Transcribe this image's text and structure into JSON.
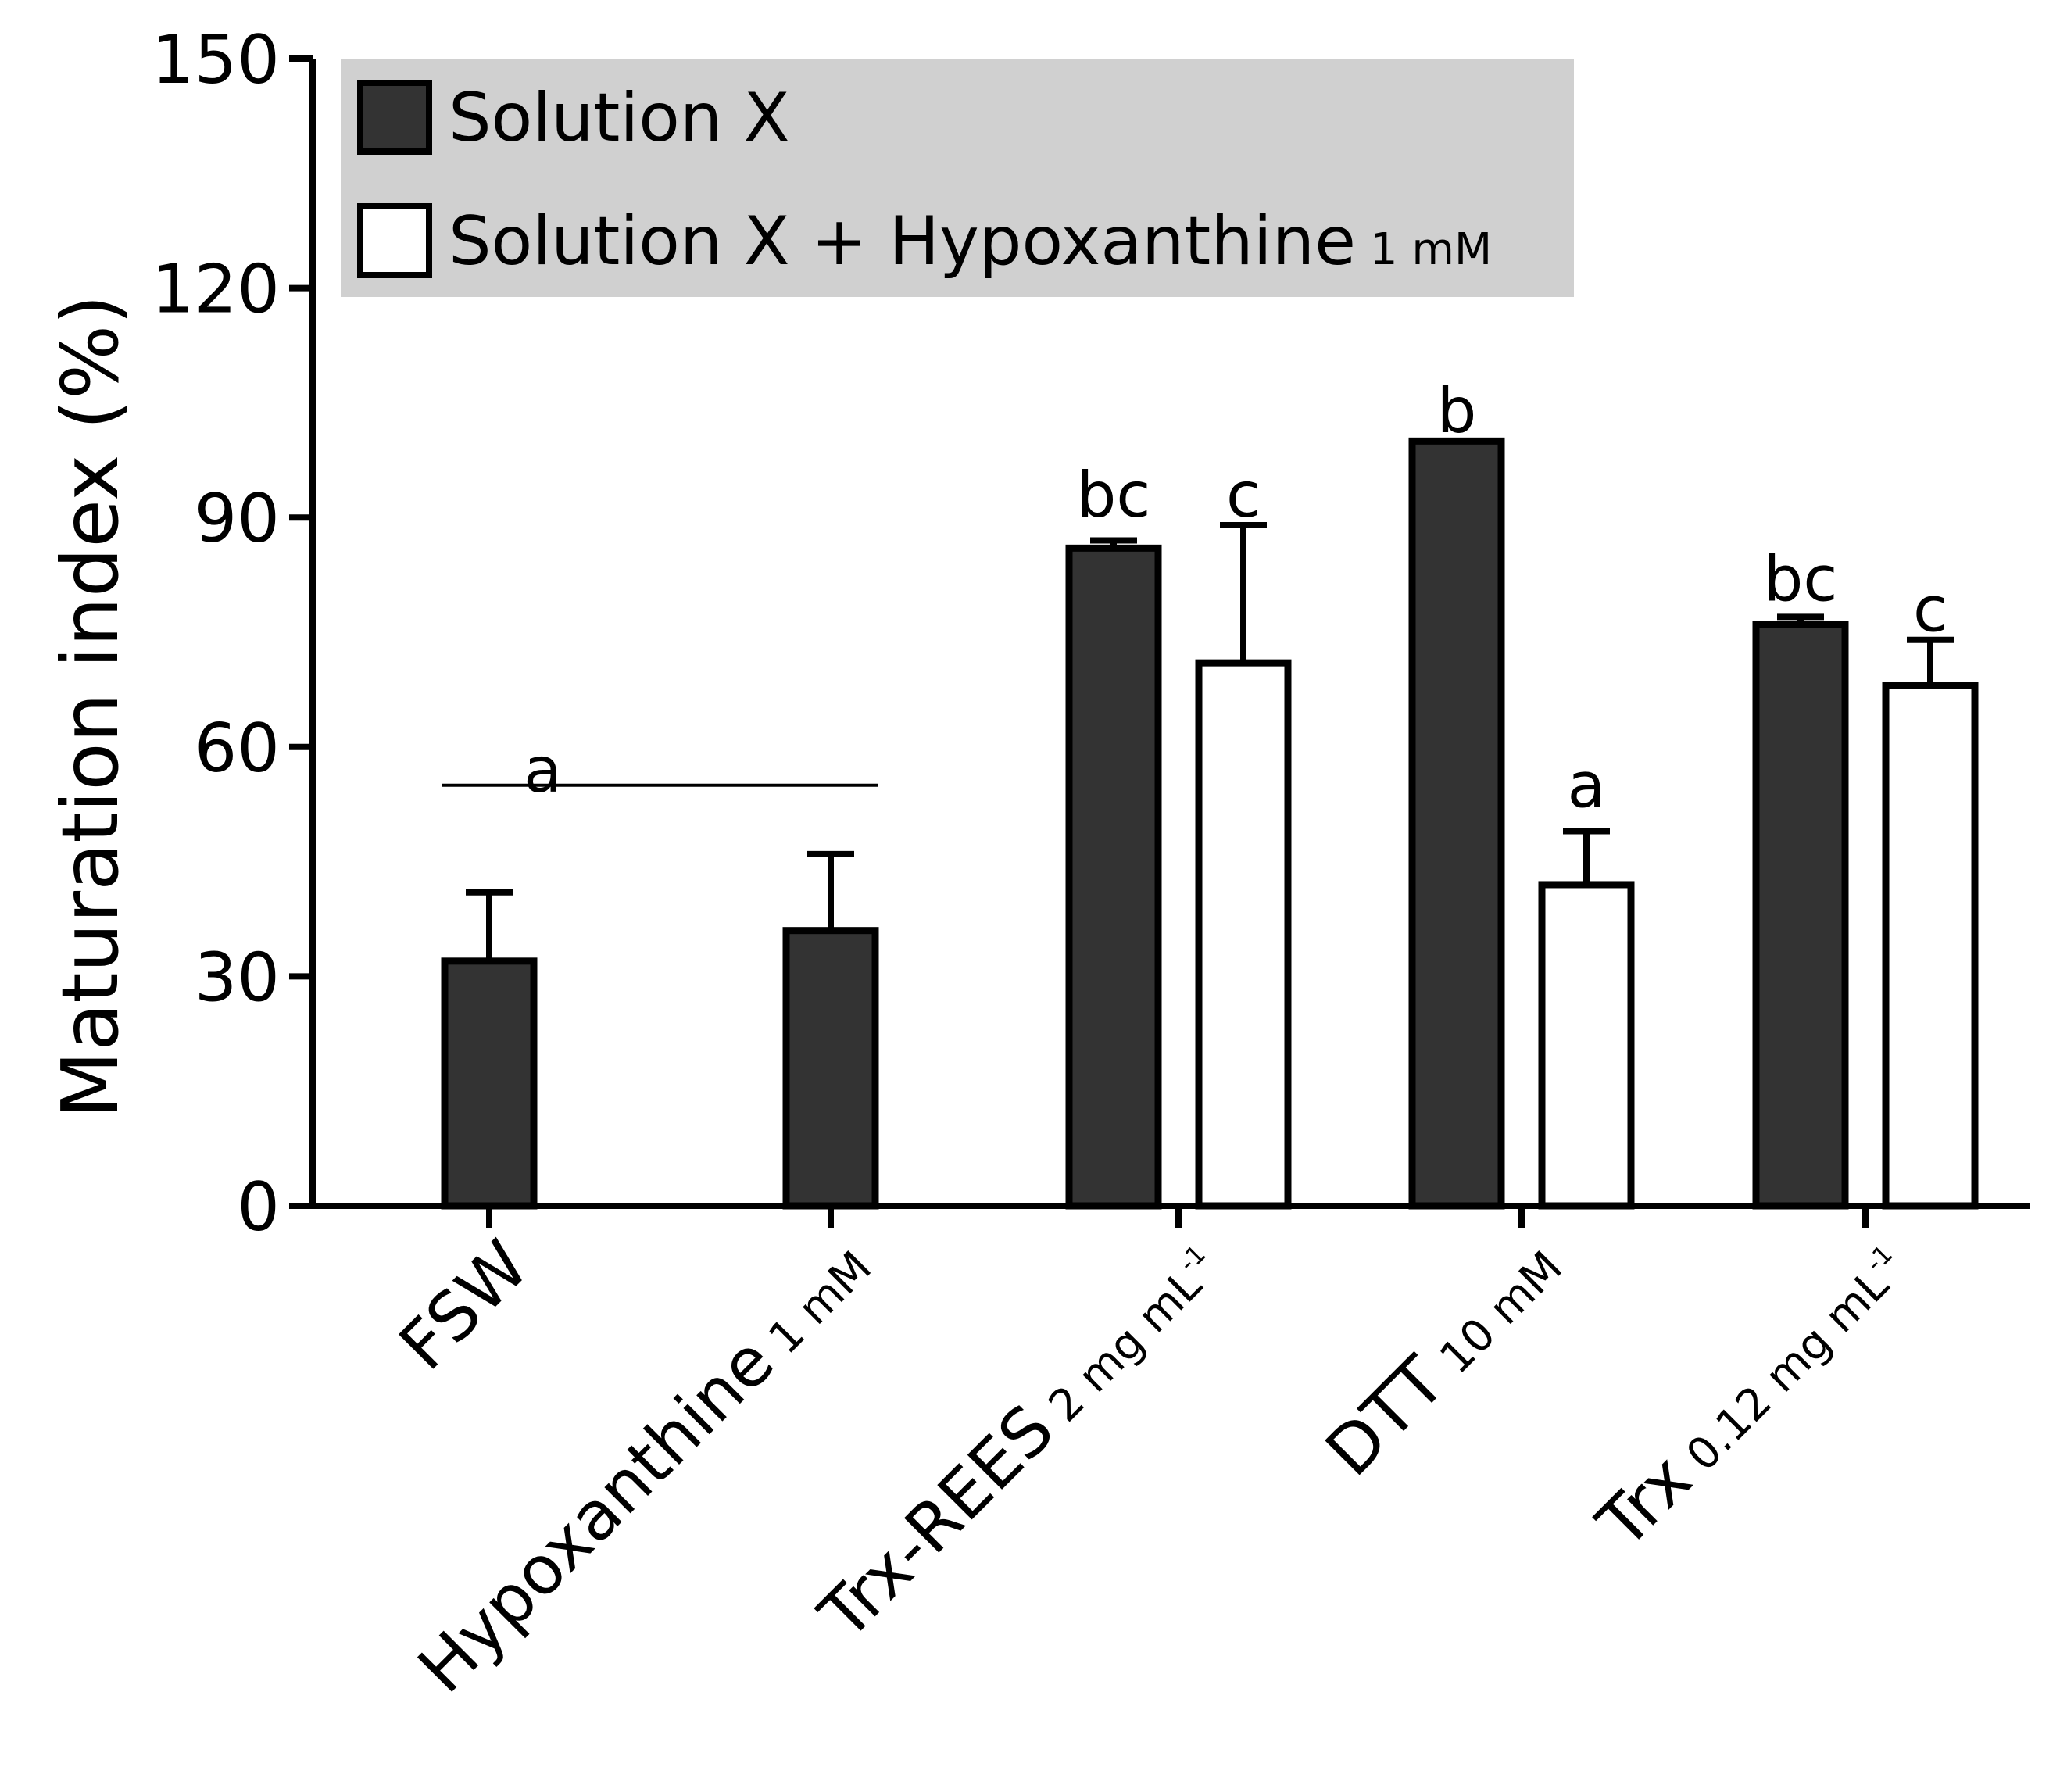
{
  "chart_data": {
    "type": "bar",
    "title": "",
    "xlabel": "",
    "ylabel": "Maturation index (%)",
    "ylim": [
      0,
      150
    ],
    "yticks": [
      0,
      30,
      60,
      90,
      120,
      150
    ],
    "legend_position": "top-left",
    "grid": false,
    "colors": {
      "solution_x": "#333333",
      "solution_x_hypo": "#ffffff",
      "legend_bg": "#d0d0d0"
    },
    "categories": [
      {
        "main": "FSW",
        "sub": ""
      },
      {
        "main": "Hypoxanthine",
        "sub": "1 mM"
      },
      {
        "main": "Trx-REES",
        "sub": "2 mg mL",
        "sup": "-1"
      },
      {
        "main": "DTT",
        "sub": "10 mM"
      },
      {
        "main": "Trx",
        "sub": "0.12 mg mL",
        "sup": "-1"
      }
    ],
    "series": [
      {
        "name": "Solution X",
        "values": [
          32,
          36,
          86,
          100,
          76
        ],
        "errors": [
          9,
          10,
          1,
          0,
          1
        ]
      },
      {
        "name": "Solution X + Hypoxanthine",
        "name_sub": "1 mM",
        "values": [
          null,
          null,
          71,
          42,
          68
        ],
        "errors": [
          null,
          null,
          18,
          7,
          6
        ]
      }
    ],
    "significance_letters": [
      {
        "text": "a",
        "category": 0,
        "series": "span",
        "value": 57
      },
      {
        "text": "bc",
        "category": 2,
        "series": 0,
        "value": 93
      },
      {
        "text": "c",
        "category": 2,
        "series": 1,
        "value": 93
      },
      {
        "text": "b",
        "category": 3,
        "series": 0,
        "value": 104
      },
      {
        "text": "a",
        "category": 3,
        "series": 1,
        "value": 55
      },
      {
        "text": "bc",
        "category": 4,
        "series": 0,
        "value": 82
      },
      {
        "text": "c",
        "category": 4,
        "series": 1,
        "value": 78
      }
    ],
    "bracket": {
      "from_category": 0,
      "to_category": 1,
      "value": 55
    }
  }
}
